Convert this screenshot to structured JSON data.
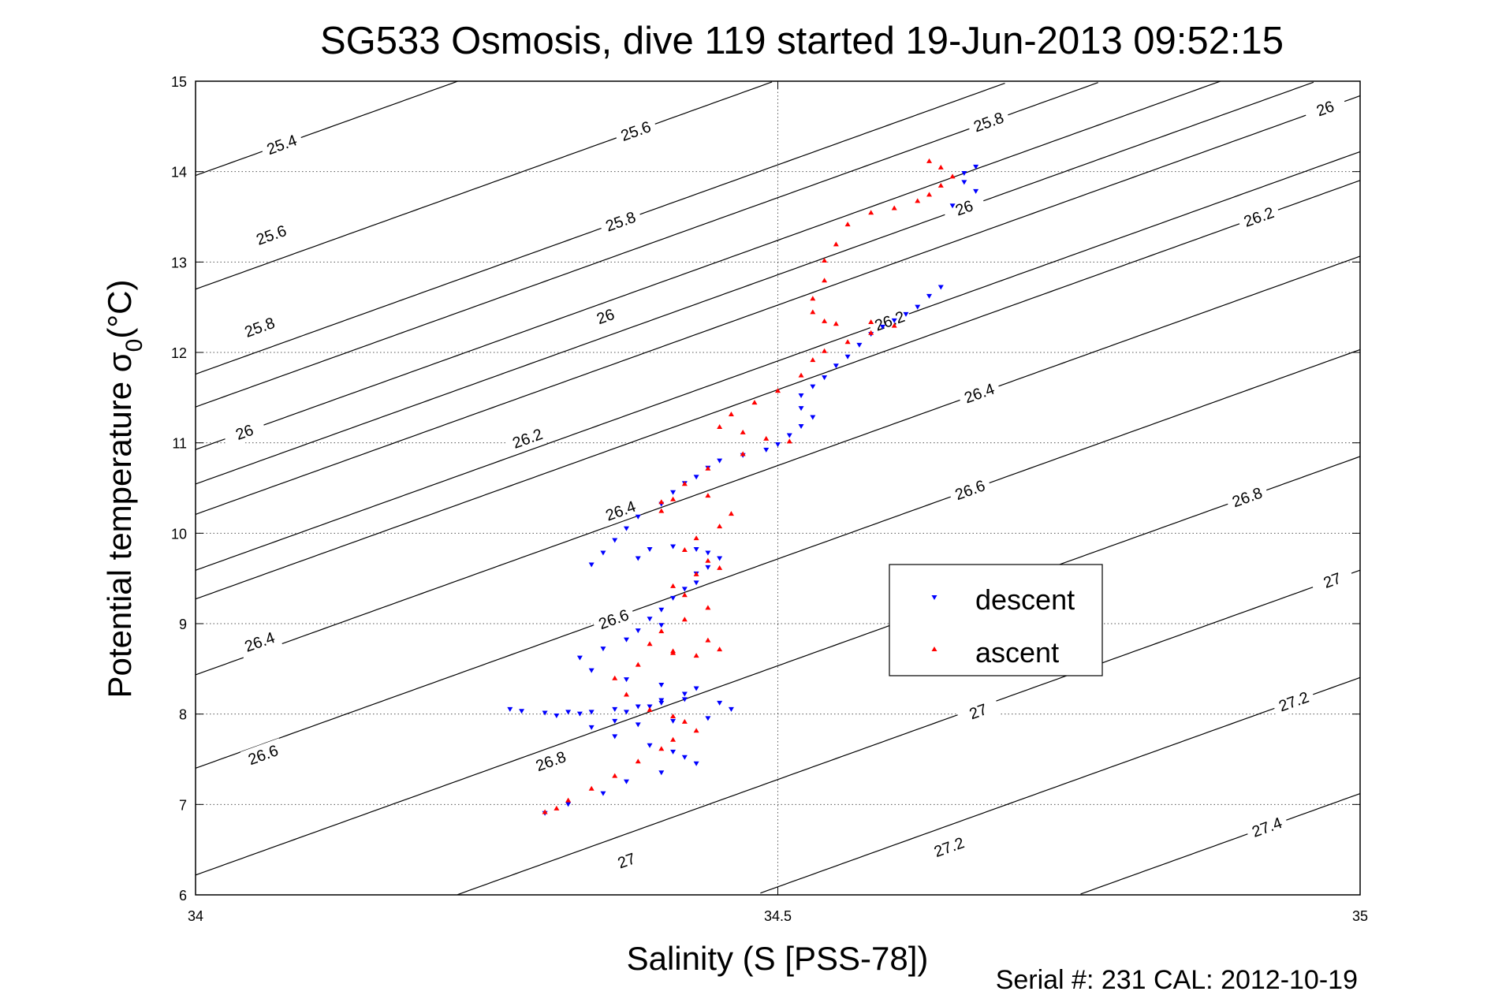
{
  "chart_data": {
    "type": "scatter",
    "title": "SG533 Osmosis, dive 119 started 19-Jun-2013 09:52:15",
    "xlabel": "Salinity (S [PSS-78])",
    "ylabel_main": "Potential temperature σ",
    "ylabel_sub": "0",
    "ylabel_unit": "(°C)",
    "footer": "Serial #: 231  CAL: 2012-10-19",
    "xlim": [
      34,
      35
    ],
    "ylim": [
      6,
      15
    ],
    "xticks": [
      34,
      34.5,
      35
    ],
    "xtick_labels": [
      "34",
      "34.5",
      "35"
    ],
    "yticks": [
      6,
      7,
      8,
      9,
      10,
      11,
      12,
      13,
      14,
      15
    ],
    "ytick_labels": [
      "6",
      "7",
      "8",
      "9",
      "10",
      "11",
      "12",
      "13",
      "14",
      "15"
    ],
    "grid": "dotted",
    "legend_position": "center-right",
    "contour_levels": [
      25.4,
      25.6,
      25.8,
      26,
      26.2,
      26.4,
      26.6,
      26.8,
      27,
      27.2,
      27.4
    ],
    "contour_labels": [
      {
        "text": "25.4",
        "x": 34.074,
        "y": 14.3
      },
      {
        "text": "25.6",
        "x": 34.378,
        "y": 14.45
      },
      {
        "text": "25.8",
        "x": 34.681,
        "y": 14.55
      },
      {
        "text": "26",
        "x": 34.97,
        "y": 14.7
      },
      {
        "text": "25.6",
        "x": 34.065,
        "y": 13.3
      },
      {
        "text": "25.8",
        "x": 34.365,
        "y": 13.45
      },
      {
        "text": "26",
        "x": 34.66,
        "y": 13.6
      },
      {
        "text": "26.2",
        "x": 34.913,
        "y": 13.5
      },
      {
        "text": "25.8",
        "x": 34.055,
        "y": 12.28
      },
      {
        "text": "26",
        "x": 34.352,
        "y": 12.4
      },
      {
        "text": "26.2",
        "x": 34.596,
        "y": 12.35
      },
      {
        "text": "26",
        "x": 34.042,
        "y": 11.12
      },
      {
        "text": "26.2",
        "x": 34.285,
        "y": 11.05
      },
      {
        "text": "26.4",
        "x": 34.673,
        "y": 11.55
      },
      {
        "text": "26.4",
        "x": 34.365,
        "y": 10.25
      },
      {
        "text": "26.6",
        "x": 34.665,
        "y": 10.48
      },
      {
        "text": "26.8",
        "x": 34.903,
        "y": 10.4
      },
      {
        "text": "26.6",
        "x": 34.359,
        "y": 9.05
      },
      {
        "text": "26.4",
        "x": 34.055,
        "y": 8.8
      },
      {
        "text": "27",
        "x": 34.976,
        "y": 9.48
      },
      {
        "text": "26.6",
        "x": 34.058,
        "y": 7.55
      },
      {
        "text": "26.8",
        "x": 34.305,
        "y": 7.48
      },
      {
        "text": "27",
        "x": 34.672,
        "y": 8.03
      },
      {
        "text": "27.2",
        "x": 34.943,
        "y": 8.14
      },
      {
        "text": "27",
        "x": 34.37,
        "y": 6.38
      },
      {
        "text": "27.2",
        "x": 34.647,
        "y": 6.53
      },
      {
        "text": "27.4",
        "x": 34.92,
        "y": 6.75
      }
    ],
    "series": [
      {
        "name": "descent",
        "color": "#0000ff",
        "marker": "triangle-down",
        "x": [
          34.67,
          34.66,
          34.66,
          34.67,
          34.65,
          34.64,
          34.63,
          34.62,
          34.61,
          34.6,
          34.59,
          34.58,
          34.57,
          34.56,
          34.55,
          34.54,
          34.53,
          34.52,
          34.52,
          34.53,
          34.52,
          34.51,
          34.5,
          34.49,
          34.47,
          34.45,
          34.44,
          34.43,
          34.42,
          34.41,
          34.4,
          34.38,
          34.37,
          34.36,
          34.35,
          34.34,
          34.38,
          34.39,
          34.41,
          34.43,
          34.44,
          34.45,
          34.44,
          34.43,
          34.43,
          34.42,
          34.41,
          34.4,
          34.39,
          34.4,
          34.38,
          34.37,
          34.35,
          34.33,
          34.34,
          34.37,
          34.4,
          34.43,
          34.42,
          34.4,
          34.39,
          34.37,
          34.36,
          34.38,
          34.41,
          34.44,
          34.46,
          34.45,
          34.42,
          34.4,
          34.38,
          34.36,
          34.34,
          34.33,
          34.32,
          34.3,
          34.28,
          34.27,
          34.31,
          34.34,
          34.36,
          34.39,
          34.41,
          34.42,
          34.43,
          34.4,
          34.37,
          34.35,
          34.32,
          34.3
        ],
        "y": [
          14.05,
          13.98,
          13.88,
          13.78,
          13.62,
          12.72,
          12.62,
          12.5,
          12.42,
          12.35,
          12.28,
          12.2,
          12.08,
          11.95,
          11.85,
          11.72,
          11.62,
          11.52,
          11.38,
          11.28,
          11.18,
          11.08,
          10.98,
          10.92,
          10.86,
          10.8,
          10.72,
          10.62,
          10.55,
          10.45,
          10.32,
          10.18,
          10.05,
          9.92,
          9.78,
          9.65,
          9.72,
          9.82,
          9.85,
          9.82,
          9.78,
          9.72,
          9.62,
          9.55,
          9.45,
          9.38,
          9.28,
          9.15,
          9.05,
          8.98,
          8.92,
          8.82,
          8.72,
          8.62,
          8.48,
          8.38,
          8.32,
          8.28,
          8.22,
          8.15,
          8.08,
          8.02,
          7.92,
          7.88,
          7.92,
          7.95,
          8.05,
          8.12,
          8.16,
          8.12,
          8.08,
          8.05,
          8.02,
          8.0,
          8.02,
          8.01,
          8.03,
          8.05,
          7.98,
          7.85,
          7.75,
          7.65,
          7.58,
          7.52,
          7.45,
          7.35,
          7.25,
          7.12,
          7.0,
          6.9
        ]
      },
      {
        "name": "ascent",
        "color": "#ff0000",
        "marker": "triangle-up",
        "x": [
          34.63,
          34.64,
          34.65,
          34.64,
          34.63,
          34.62,
          34.6,
          34.58,
          34.56,
          34.55,
          34.54,
          34.54,
          34.53,
          34.53,
          34.54,
          34.55,
          34.58,
          34.6,
          34.58,
          34.56,
          34.54,
          34.53,
          34.52,
          34.5,
          34.48,
          34.46,
          34.45,
          34.47,
          34.49,
          34.51,
          34.47,
          34.44,
          34.42,
          34.4,
          34.4,
          34.41,
          34.44,
          34.46,
          34.45,
          34.43,
          34.42,
          34.44,
          34.45,
          34.43,
          34.41,
          34.42,
          34.44,
          34.42,
          34.4,
          34.39,
          34.41,
          34.43,
          34.45,
          34.44,
          34.41,
          34.38,
          34.36,
          34.37,
          34.39,
          34.41,
          34.42,
          34.43,
          34.41,
          34.4,
          34.38,
          34.36,
          34.34,
          34.32,
          34.31,
          34.3
        ],
        "y": [
          14.12,
          14.05,
          13.95,
          13.85,
          13.75,
          13.68,
          13.6,
          13.55,
          13.42,
          13.2,
          13.02,
          12.8,
          12.6,
          12.45,
          12.35,
          12.32,
          12.34,
          12.3,
          12.22,
          12.12,
          12.02,
          11.92,
          11.75,
          11.58,
          11.45,
          11.32,
          11.18,
          11.12,
          11.05,
          11.02,
          10.88,
          10.72,
          10.55,
          10.35,
          10.25,
          10.38,
          10.42,
          10.22,
          10.08,
          9.95,
          9.82,
          9.7,
          9.62,
          9.55,
          9.42,
          9.32,
          9.18,
          9.05,
          8.92,
          8.78,
          8.7,
          8.65,
          8.72,
          8.82,
          8.68,
          8.55,
          8.4,
          8.22,
          8.05,
          7.98,
          7.92,
          7.82,
          7.72,
          7.62,
          7.48,
          7.32,
          7.18,
          7.05,
          6.96,
          6.92
        ]
      }
    ]
  }
}
